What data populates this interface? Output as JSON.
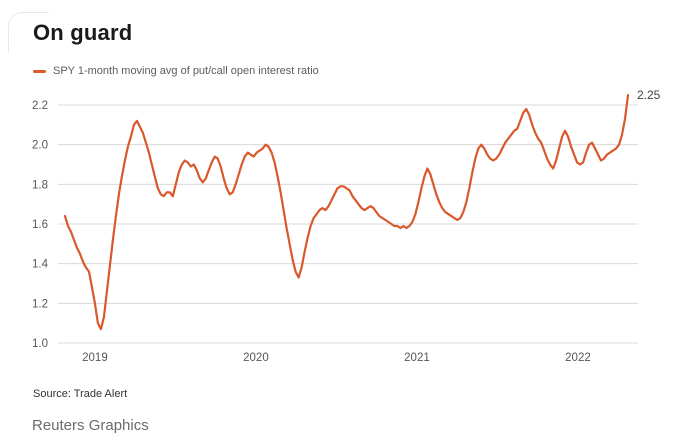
{
  "header": {
    "title": "On guard",
    "legend_label": "SPY 1-month moving avg of put/call open interest ratio"
  },
  "footer": {
    "source": "Source: Trade Alert",
    "credit": "Reuters Graphics"
  },
  "colors": {
    "line": "#d9582c",
    "grid": "#d8d8d8",
    "tick_text": "#54565a",
    "annotation_text": "#3f4144",
    "title_text": "#1a1a1a"
  },
  "chart_data": {
    "type": "line",
    "title": "On guard",
    "xlabel": "",
    "ylabel": "",
    "grid": "horizontal",
    "legend_position": "top-left",
    "xlim": [
      2018.814,
      2022.317
    ],
    "ylim": [
      1.0,
      2.2
    ],
    "y_ticks": [
      {
        "v": 2.2,
        "label": "2.2"
      },
      {
        "v": 2.0,
        "label": "2.0"
      },
      {
        "v": 1.8,
        "label": "1.8"
      },
      {
        "v": 1.6,
        "label": "1.6"
      },
      {
        "v": 1.4,
        "label": "1.4"
      },
      {
        "v": 1.2,
        "label": "1.2"
      },
      {
        "v": 1.0,
        "label": "1.0"
      }
    ],
    "x_ticks": [
      {
        "v": 2019,
        "label": "2019"
      },
      {
        "v": 2020,
        "label": "2020"
      },
      {
        "v": 2021,
        "label": "2021"
      },
      {
        "v": 2022,
        "label": "2022"
      }
    ],
    "annotation": {
      "x": 2022.317,
      "y": 2.25,
      "label": "2.25"
    },
    "series": [
      {
        "name": "SPY 1-month moving avg of put/call open interest ratio",
        "color": "#d9582c",
        "x_start": 2018.814,
        "x_step": 0.0186,
        "values": [
          1.64,
          1.59,
          1.56,
          1.52,
          1.48,
          1.45,
          1.41,
          1.38,
          1.36,
          1.28,
          1.2,
          1.1,
          1.07,
          1.13,
          1.26,
          1.39,
          1.52,
          1.64,
          1.75,
          1.84,
          1.92,
          1.99,
          2.04,
          2.1,
          2.12,
          2.09,
          2.06,
          2.01,
          1.96,
          1.9,
          1.84,
          1.78,
          1.75,
          1.74,
          1.76,
          1.76,
          1.74,
          1.8,
          1.86,
          1.9,
          1.92,
          1.91,
          1.89,
          1.9,
          1.87,
          1.83,
          1.81,
          1.83,
          1.87,
          1.91,
          1.94,
          1.93,
          1.89,
          1.83,
          1.78,
          1.75,
          1.76,
          1.8,
          1.85,
          1.9,
          1.94,
          1.96,
          1.95,
          1.94,
          1.96,
          1.97,
          1.98,
          2.0,
          1.99,
          1.96,
          1.91,
          1.84,
          1.76,
          1.67,
          1.58,
          1.5,
          1.42,
          1.36,
          1.33,
          1.38,
          1.46,
          1.53,
          1.59,
          1.63,
          1.65,
          1.67,
          1.68,
          1.67,
          1.69,
          1.72,
          1.75,
          1.78,
          1.79,
          1.79,
          1.78,
          1.77,
          1.74,
          1.72,
          1.7,
          1.68,
          1.67,
          1.68,
          1.69,
          1.68,
          1.66,
          1.64,
          1.63,
          1.62,
          1.61,
          1.6,
          1.59,
          1.59,
          1.58,
          1.59,
          1.58,
          1.59,
          1.61,
          1.65,
          1.71,
          1.78,
          1.84,
          1.88,
          1.85,
          1.8,
          1.75,
          1.71,
          1.68,
          1.66,
          1.65,
          1.64,
          1.63,
          1.62,
          1.63,
          1.66,
          1.71,
          1.78,
          1.86,
          1.93,
          1.98,
          2.0,
          1.98,
          1.95,
          1.93,
          1.92,
          1.93,
          1.95,
          1.98,
          2.01,
          2.03,
          2.05,
          2.07,
          2.08,
          2.12,
          2.16,
          2.18,
          2.15,
          2.1,
          2.06,
          2.03,
          2.01,
          1.97,
          1.93,
          1.9,
          1.88,
          1.92,
          1.98,
          2.04,
          2.07,
          2.04,
          1.99,
          1.95,
          1.91,
          1.9,
          1.91,
          1.96,
          2.0,
          2.01,
          1.98,
          1.95,
          1.92,
          1.93,
          1.95,
          1.96,
          1.97,
          1.98,
          2.0,
          2.05,
          2.13,
          2.25
        ]
      }
    ]
  }
}
